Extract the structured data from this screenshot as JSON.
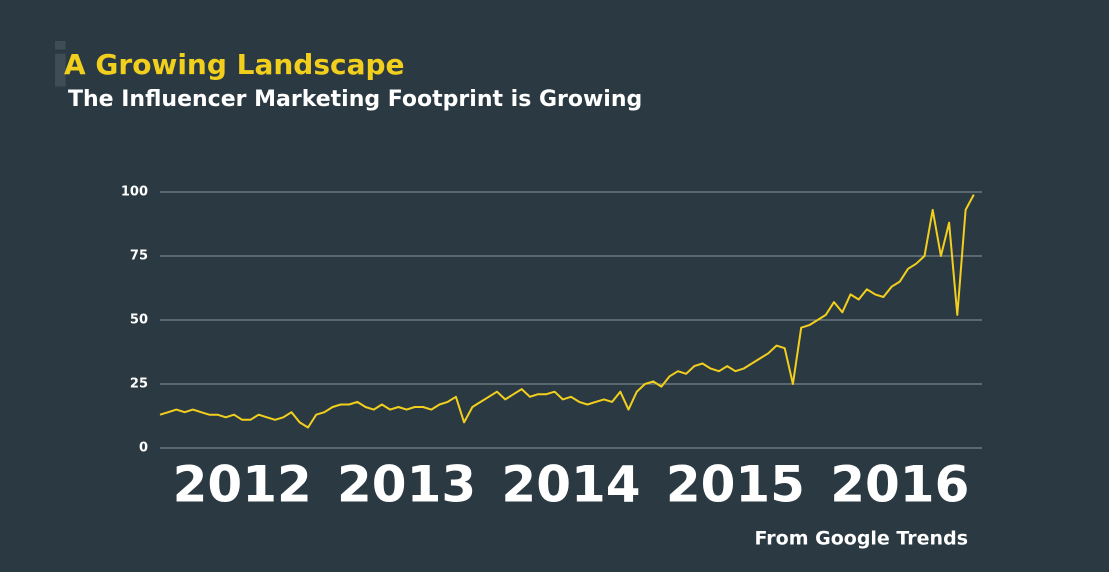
{
  "chart_data": {
    "type": "line",
    "title": "A Growing Landscape",
    "subtitle": "The Influencer Marketing Footprint is Growing",
    "source": "From Google Trends",
    "x": [
      2012.0,
      2012.05,
      2012.1,
      2012.15,
      2012.2,
      2012.25,
      2012.3,
      2012.35,
      2012.4,
      2012.45,
      2012.5,
      2012.55,
      2012.6,
      2012.65,
      2012.7,
      2012.75,
      2012.8,
      2012.85,
      2012.9,
      2012.95,
      2013.0,
      2013.05,
      2013.1,
      2013.15,
      2013.2,
      2013.25,
      2013.3,
      2013.35,
      2013.4,
      2013.45,
      2013.5,
      2013.55,
      2013.6,
      2013.65,
      2013.7,
      2013.75,
      2013.8,
      2013.85,
      2013.9,
      2013.95,
      2014.0,
      2014.05,
      2014.1,
      2014.15,
      2014.2,
      2014.25,
      2014.3,
      2014.35,
      2014.4,
      2014.45,
      2014.5,
      2014.55,
      2014.6,
      2014.65,
      2014.7,
      2014.75,
      2014.8,
      2014.85,
      2014.9,
      2014.95,
      2015.0,
      2015.05,
      2015.1,
      2015.15,
      2015.2,
      2015.25,
      2015.3,
      2015.35,
      2015.4,
      2015.45,
      2015.5,
      2015.55,
      2015.6,
      2015.65,
      2015.7,
      2015.75,
      2015.8,
      2015.85,
      2015.9,
      2015.95,
      2016.0,
      2016.05,
      2016.1,
      2016.15,
      2016.2,
      2016.25,
      2016.3,
      2016.35,
      2016.4,
      2016.45,
      2016.5,
      2016.55,
      2016.6,
      2016.65,
      2016.7,
      2016.75,
      2016.8,
      2016.85,
      2016.9,
      2016.95
    ],
    "series": [
      {
        "name": "Influencer marketing",
        "color": "#f2cf1d",
        "values": [
          13,
          14,
          15,
          14,
          15,
          14,
          13,
          13,
          12,
          13,
          11,
          11,
          13,
          12,
          11,
          12,
          14,
          10,
          8,
          13,
          14,
          16,
          17,
          17,
          18,
          16,
          15,
          17,
          15,
          16,
          15,
          16,
          16,
          15,
          17,
          18,
          20,
          10,
          16,
          18,
          20,
          22,
          19,
          21,
          23,
          20,
          21,
          21,
          22,
          19,
          20,
          18,
          17,
          18,
          19,
          18,
          22,
          15,
          22,
          25,
          26,
          24,
          28,
          30,
          29,
          32,
          33,
          31,
          30,
          32,
          30,
          31,
          33,
          35,
          37,
          40,
          39,
          25,
          47,
          48,
          50,
          52,
          57,
          53,
          60,
          58,
          62,
          60,
          59,
          63,
          65,
          70,
          72,
          75,
          93,
          75,
          88,
          52,
          93,
          99
        ]
      }
    ],
    "xlim": [
      2012,
      2017
    ],
    "xticks": [
      {
        "value": 2012.5,
        "label": "2012"
      },
      {
        "value": 2013.5,
        "label": "2013"
      },
      {
        "value": 2014.5,
        "label": "2014"
      },
      {
        "value": 2015.5,
        "label": "2015"
      },
      {
        "value": 2016.5,
        "label": "2016"
      }
    ],
    "ylim": [
      0,
      100
    ],
    "yticks": [
      0,
      25,
      50,
      75,
      100
    ],
    "grid": true
  }
}
